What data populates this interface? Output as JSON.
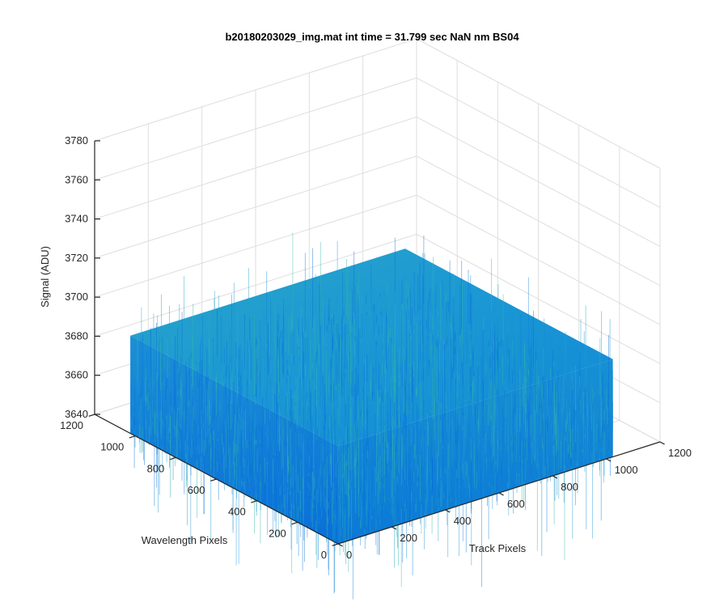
{
  "chart_data": {
    "type": "surface",
    "title": "b20180203029_img.mat int time = 31.799 sec  NaN nm BS04",
    "xlabel": "Track Pixels",
    "ylabel": "Wavelength Pixels",
    "zlabel": "Signal (ADU)",
    "xlim": [
      0,
      1200
    ],
    "ylim": [
      0,
      1200
    ],
    "zlim": [
      3640,
      3780
    ],
    "x_ticks": [
      "0",
      "200",
      "400",
      "600",
      "800",
      "1000",
      "1200"
    ],
    "y_ticks": [
      "0",
      "200",
      "400",
      "600",
      "800",
      "1000",
      "1200"
    ],
    "z_ticks": [
      "3640",
      "3660",
      "3680",
      "3700",
      "3720",
      "3740",
      "3760",
      "3780"
    ],
    "grid": true,
    "surface": {
      "x_range": [
        0,
        1024
      ],
      "y_range": [
        0,
        1024
      ],
      "mean_signal": 3670,
      "noise_low": 3640,
      "noise_high": 3700
    },
    "colors": {
      "surface_low": "#0a6fd8",
      "surface_mid": "#1b97d4",
      "surface_high": "#34b7a8",
      "grid": "#dedede",
      "axis": "#262626"
    }
  }
}
